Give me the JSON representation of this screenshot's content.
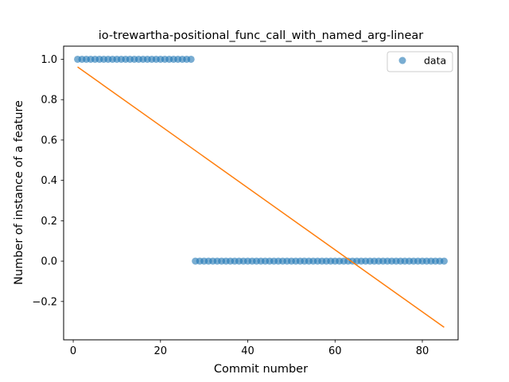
{
  "chart_data": {
    "type": "scatter",
    "title": "io-trewartha-positional_func_call_with_named_arg-linear",
    "xlabel": "Commit number",
    "ylabel": "Number of instance of a feature",
    "xlim": [
      -2.2,
      88.2
    ],
    "ylim": [
      -0.39,
      1.065
    ],
    "xticks": [
      0,
      20,
      40,
      60,
      80
    ],
    "yticks": [
      -0.2,
      0.0,
      0.2,
      0.4,
      0.6,
      0.8,
      1.0
    ],
    "xtick_labels": [
      "0",
      "20",
      "40",
      "60",
      "80"
    ],
    "ytick_labels": [
      "−0.2",
      "0.0",
      "0.2",
      "0.4",
      "0.6",
      "0.8",
      "1.0"
    ],
    "grid": false,
    "legend_position": "top-right",
    "series": [
      {
        "name": "data",
        "kind": "scatter",
        "color": "#1f77b4",
        "x": [
          1,
          2,
          3,
          4,
          5,
          6,
          7,
          8,
          9,
          10,
          11,
          12,
          13,
          14,
          15,
          16,
          17,
          18,
          19,
          20,
          21,
          22,
          23,
          24,
          25,
          26,
          27,
          28,
          29,
          30,
          31,
          32,
          33,
          34,
          35,
          36,
          37,
          38,
          39,
          40,
          41,
          42,
          43,
          44,
          45,
          46,
          47,
          48,
          49,
          50,
          51,
          52,
          53,
          54,
          55,
          56,
          57,
          58,
          59,
          60,
          61,
          62,
          63,
          64,
          65,
          66,
          67,
          68,
          69,
          70,
          71,
          72,
          73,
          74,
          75,
          76,
          77,
          78,
          79,
          80,
          81,
          82,
          83,
          84,
          85
        ],
        "y": [
          1,
          1,
          1,
          1,
          1,
          1,
          1,
          1,
          1,
          1,
          1,
          1,
          1,
          1,
          1,
          1,
          1,
          1,
          1,
          1,
          1,
          1,
          1,
          1,
          1,
          1,
          1,
          0,
          0,
          0,
          0,
          0,
          0,
          0,
          0,
          0,
          0,
          0,
          0,
          0,
          0,
          0,
          0,
          0,
          0,
          0,
          0,
          0,
          0,
          0,
          0,
          0,
          0,
          0,
          0,
          0,
          0,
          0,
          0,
          0,
          0,
          0,
          0,
          0,
          0,
          0,
          0,
          0,
          0,
          0,
          0,
          0,
          0,
          0,
          0,
          0,
          0,
          0,
          0,
          0,
          0,
          0,
          0,
          0,
          0
        ]
      },
      {
        "kind": "line",
        "color": "#ff7f0e",
        "x": [
          1,
          85
        ],
        "y": [
          0.962,
          -0.328
        ]
      }
    ]
  }
}
